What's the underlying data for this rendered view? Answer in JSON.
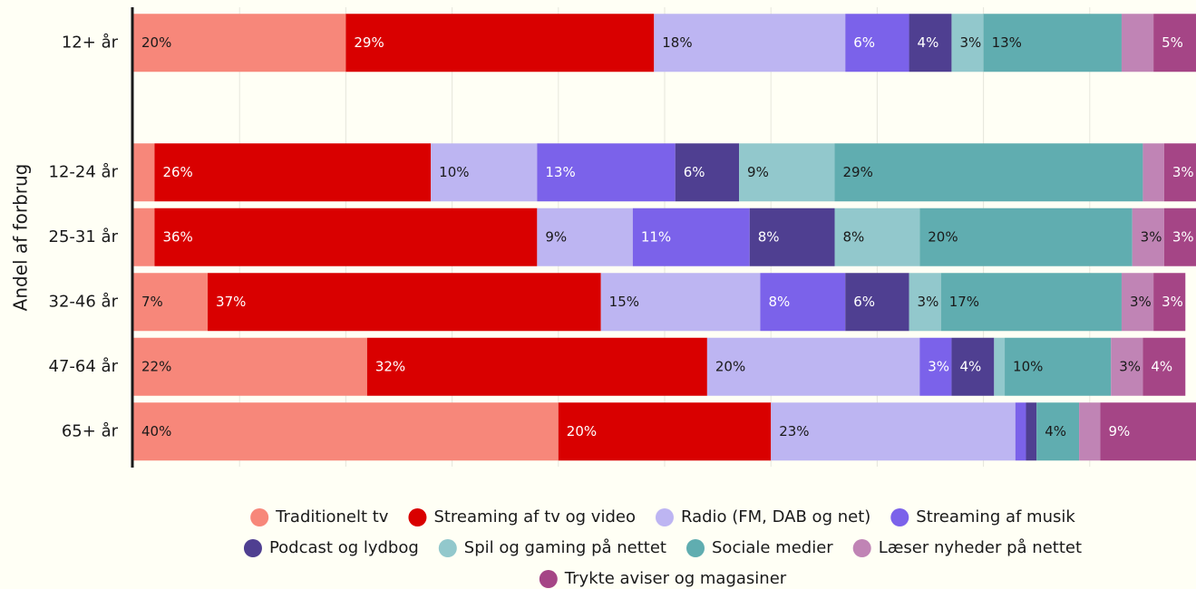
{
  "chart_data": {
    "type": "stacked_bar_horizontal",
    "y_label": "Andel af forbrug",
    "categories": [
      "12+ år",
      null,
      "12-24 år",
      "25-31 år",
      "32-46 år",
      "47-64 år",
      "65+ år"
    ],
    "xlim": [
      0,
      100
    ],
    "xticks": [
      10,
      20,
      30,
      40,
      50,
      60,
      70,
      80,
      90
    ],
    "grid": true,
    "legend": "bottom",
    "series": [
      {
        "name": "Traditionelt tv",
        "color": "#f7877a",
        "values": [
          20,
          null,
          2,
          2,
          7,
          22,
          40
        ],
        "value_labels": [
          "20%",
          null,
          null,
          null,
          "7%",
          "22%",
          "40%"
        ]
      },
      {
        "name": "Streaming af tv og video",
        "color": "#d90000",
        "values": [
          29,
          null,
          26,
          36,
          37,
          32,
          20
        ],
        "value_labels": [
          "29%",
          null,
          "26%",
          "36%",
          "37%",
          "32%",
          "20%"
        ]
      },
      {
        "name": "Radio (FM, DAB og net)",
        "color": "#bdb5f2",
        "values": [
          18,
          null,
          10,
          9,
          15,
          20,
          23
        ],
        "value_labels": [
          "18%",
          null,
          "10%",
          "9%",
          "15%",
          "20%",
          "23%"
        ]
      },
      {
        "name": "Streaming af musik",
        "color": "#7b62ea",
        "values": [
          6,
          null,
          13,
          11,
          8,
          3,
          1
        ],
        "value_labels": [
          "6%",
          null,
          "13%",
          "11%",
          "8%",
          "3%",
          null
        ]
      },
      {
        "name": "Podcast og lydbog",
        "color": "#4f3f91",
        "values": [
          4,
          null,
          6,
          8,
          6,
          4,
          1
        ],
        "value_labels": [
          "4%",
          null,
          "6%",
          "8%",
          "6%",
          "4%",
          null
        ]
      },
      {
        "name": "Spil og gaming på nettet",
        "color": "#92c8cc",
        "values": [
          3,
          null,
          9,
          8,
          3,
          1,
          0
        ],
        "value_labels": [
          "3%",
          null,
          "9%",
          "8%",
          "3%",
          null,
          null
        ]
      },
      {
        "name": "Sociale medier",
        "color": "#60adb0",
        "values": [
          13,
          null,
          29,
          20,
          17,
          10,
          4
        ],
        "value_labels": [
          "13%",
          null,
          "29%",
          "20%",
          "17%",
          "10%",
          "4%"
        ]
      },
      {
        "name": "Læser nyheder på nettet",
        "color": "#c084b5",
        "values": [
          3,
          null,
          2,
          3,
          3,
          3,
          2
        ],
        "value_labels": [
          null,
          null,
          null,
          "3%",
          "3%",
          "3%",
          null
        ]
      },
      {
        "name": "Trykte aviser og magasiner",
        "color": "#a54586",
        "values": [
          5,
          null,
          3,
          3,
          3,
          4,
          9
        ],
        "value_labels": [
          "5%",
          null,
          "3%",
          "3%",
          "3%",
          "4%",
          "9%"
        ]
      }
    ]
  }
}
